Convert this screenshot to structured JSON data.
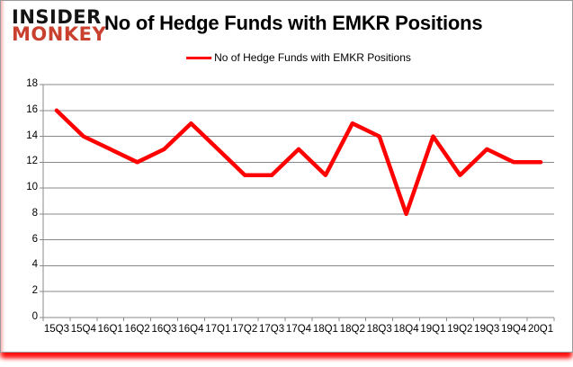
{
  "branding": {
    "line1": "INSIDER",
    "line2": "MONKEY",
    "monkey_color": "#c9412e",
    "insider_color": "#141414"
  },
  "header": {
    "title": "No of Hedge Funds with EMKR Positions"
  },
  "legend": {
    "label": "No of Hedge Funds with EMKR Positions",
    "swatch_color": "#fe0000"
  },
  "chart_data": {
    "type": "line",
    "title": "No of Hedge Funds with EMKR Positions",
    "categories": [
      "15Q3",
      "15Q4",
      "16Q1",
      "16Q2",
      "16Q3",
      "16Q4",
      "17Q1",
      "17Q2",
      "17Q3",
      "17Q4",
      "18Q1",
      "18Q2",
      "18Q3",
      "18Q4",
      "19Q1",
      "19Q2",
      "19Q3",
      "19Q4",
      "20Q1"
    ],
    "series": [
      {
        "name": "No of Hedge Funds with EMKR Positions",
        "color": "#fe0000",
        "values": [
          16,
          14,
          13,
          12,
          13,
          15,
          13,
          11,
          11,
          13,
          11,
          15,
          14,
          8,
          14,
          11,
          13,
          12,
          12
        ]
      }
    ],
    "xlabel": "",
    "ylabel": "",
    "ylim": [
      0,
      18
    ],
    "y_ticks": [
      0,
      2,
      4,
      6,
      8,
      10,
      12,
      14,
      16,
      18
    ],
    "grid": true,
    "gridline_color": "#898989",
    "axis_color": "#898989",
    "legend_position": "top-center"
  }
}
